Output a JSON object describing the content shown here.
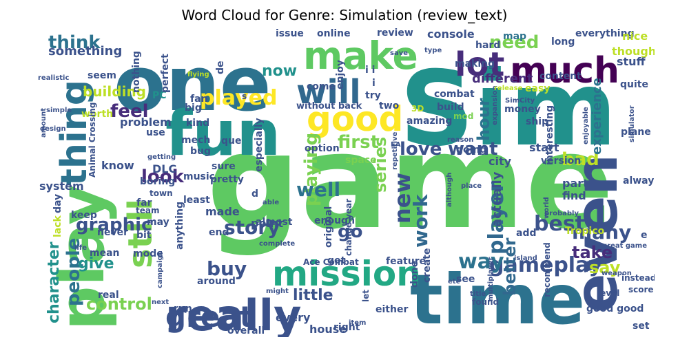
{
  "chart_data": {
    "type": "wordcloud",
    "title": "Word Cloud for Genre: Simulation (review_text)",
    "background": "#ffffff",
    "colormap": "viridis",
    "words": [
      {
        "text": "game",
        "color": "#5ec962"
      },
      {
        "text": "Sim",
        "color": "#21918c"
      },
      {
        "text": "one",
        "color": "#2c728e"
      },
      {
        "text": "time",
        "color": "#2c728e"
      },
      {
        "text": "play",
        "color": "#5ec962"
      },
      {
        "text": "fun",
        "color": "#21918c"
      },
      {
        "text": "even",
        "color": "#3b528b"
      },
      {
        "text": "really",
        "color": "#3b528b"
      },
      {
        "text": "make",
        "color": "#5ec962"
      },
      {
        "text": "much",
        "color": "#440154"
      },
      {
        "text": "good",
        "color": "#fde725"
      },
      {
        "text": "still",
        "color": "#7ad151"
      },
      {
        "text": "thing",
        "color": "#2c728e"
      },
      {
        "text": "mission",
        "color": "#22a884"
      },
      {
        "text": "will",
        "color": "#31688e"
      },
      {
        "text": "lot",
        "color": "#472d7b"
      },
      {
        "text": "great",
        "color": "#3b528b"
      },
      {
        "text": "played",
        "color": "#fde725"
      },
      {
        "text": "gameplay",
        "color": "#3b528b"
      },
      {
        "text": "story",
        "color": "#3b528b"
      },
      {
        "text": "player",
        "color": "#31688e"
      },
      {
        "text": "people",
        "color": "#2c728e"
      },
      {
        "text": "playing",
        "color": "#7ad151"
      },
      {
        "text": "graphic",
        "color": "#3b528b"
      },
      {
        "text": "character",
        "color": "#21918c"
      },
      {
        "text": "control",
        "color": "#7ad151"
      },
      {
        "text": "buy",
        "color": "#3b528b"
      },
      {
        "text": "way",
        "color": "#2c728e"
      },
      {
        "text": "love",
        "color": "#3b528b"
      },
      {
        "text": "first",
        "color": "#7ad151"
      },
      {
        "text": "want",
        "color": "#3b528b"
      },
      {
        "text": "many",
        "color": "#3b528b"
      },
      {
        "text": "best",
        "color": "#3b528b"
      },
      {
        "text": "take",
        "color": "#472d7b"
      },
      {
        "text": "look",
        "color": "#472d7b"
      },
      {
        "text": "feel",
        "color": "#472d7b"
      },
      {
        "text": "well",
        "color": "#2c728e"
      },
      {
        "text": "new",
        "color": "#3b528b"
      },
      {
        "text": "work",
        "color": "#31688e"
      },
      {
        "text": "series",
        "color": "#7ad151"
      },
      {
        "text": "go",
        "color": "#3b528b"
      },
      {
        "text": "need",
        "color": "#7ad151"
      },
      {
        "text": "think",
        "color": "#2c728e"
      },
      {
        "text": "now",
        "color": "#21918c"
      },
      {
        "text": "hour",
        "color": "#2c728e"
      },
      {
        "text": "bad",
        "color": "#bddf26"
      },
      {
        "text": "say",
        "color": "#bddf26"
      },
      {
        "text": "better",
        "color": "#31688e"
      },
      {
        "text": "give",
        "color": "#21918c"
      },
      {
        "text": "little",
        "color": "#3b528b"
      },
      {
        "text": "experience",
        "color": "#2c728e"
      },
      {
        "text": "building",
        "color": "#bddf26"
      },
      {
        "text": "something",
        "color": "#3b528b"
      },
      {
        "text": "different",
        "color": "#472d7b"
      },
      {
        "text": "everything",
        "color": "#3b528b"
      },
      {
        "text": "stuff",
        "color": "#3b528b"
      },
      {
        "text": "though",
        "color": "#bddf26"
      },
      {
        "text": "nice",
        "color": "#bddf26"
      },
      {
        "text": "long",
        "color": "#3b528b"
      },
      {
        "text": "hard",
        "color": "#3b528b"
      },
      {
        "text": "map",
        "color": "#2c728e"
      },
      {
        "text": "console",
        "color": "#3b528b"
      },
      {
        "text": "review",
        "color": "#3b528b"
      },
      {
        "text": "online",
        "color": "#3b528b"
      },
      {
        "text": "issue",
        "color": "#3b528b"
      },
      {
        "text": "making",
        "color": "#3b528b"
      },
      {
        "text": "content",
        "color": "#3b528b"
      },
      {
        "text": "quite",
        "color": "#3b528b"
      },
      {
        "text": "easy",
        "color": "#bddf26"
      },
      {
        "text": "combat",
        "color": "#3b528b"
      },
      {
        "text": "build",
        "color": "#3b528b"
      },
      {
        "text": "mod",
        "color": "#7ad151"
      },
      {
        "text": "SimCity",
        "color": "#3b528b"
      },
      {
        "text": "interesting",
        "color": "#3b528b"
      },
      {
        "text": "money",
        "color": "#3b528b"
      },
      {
        "text": "ship",
        "color": "#3b528b"
      },
      {
        "text": "amazing",
        "color": "#3b528b"
      },
      {
        "text": "3D",
        "color": "#bddf26"
      },
      {
        "text": "two",
        "color": "#3b528b"
      },
      {
        "text": "try",
        "color": "#3b528b"
      },
      {
        "text": "enjoy",
        "color": "#3b528b"
      },
      {
        "text": "come",
        "color": "#3b528b"
      },
      {
        "text": "without back",
        "color": "#3b528b"
      },
      {
        "text": "start",
        "color": "#3b528b"
      },
      {
        "text": "version",
        "color": "#3b528b"
      },
      {
        "text": "plane",
        "color": "#3b528b"
      },
      {
        "text": "city",
        "color": "#3b528b"
      },
      {
        "text": "going",
        "color": "#3b528b"
      },
      {
        "text": "option",
        "color": "#3b528b"
      },
      {
        "text": "space",
        "color": "#7ad151"
      },
      {
        "text": "always",
        "color": "#3b528b"
      },
      {
        "text": "part",
        "color": "#3b528b"
      },
      {
        "text": "find",
        "color": "#3b528b"
      },
      {
        "text": "actually",
        "color": "#3b528b"
      },
      {
        "text": "point",
        "color": "#3b528b"
      },
      {
        "text": "enough",
        "color": "#3b528b"
      },
      {
        "text": "made",
        "color": "#3b528b"
      },
      {
        "text": "pretty",
        "color": "#3b528b"
      },
      {
        "text": "sure",
        "color": "#3b528b"
      },
      {
        "text": "almost",
        "color": "#3b528b"
      },
      {
        "text": "end",
        "color": "#3b528b"
      },
      {
        "text": "system",
        "color": "#3b528b"
      },
      {
        "text": "know",
        "color": "#3b528b"
      },
      {
        "text": "problem",
        "color": "#3b528b"
      },
      {
        "text": "use",
        "color": "#3b528b"
      },
      {
        "text": "DLC",
        "color": "#3b528b"
      },
      {
        "text": "music",
        "color": "#3b528b"
      },
      {
        "text": "boring",
        "color": "#3b528b"
      },
      {
        "text": "least",
        "color": "#3b528b"
      },
      {
        "text": "bug",
        "color": "#3b528b"
      },
      {
        "text": "mech",
        "color": "#3b528b"
      },
      {
        "text": "kind",
        "color": "#3b528b"
      },
      {
        "text": "PC",
        "color": "#21918c"
      },
      {
        "text": "worth",
        "color": "#bddf26"
      },
      {
        "text": "seem",
        "color": "#3b528b"
      },
      {
        "text": "big",
        "color": "#3b528b"
      },
      {
        "text": "fan",
        "color": "#3b528b"
      },
      {
        "text": "perfect",
        "color": "#3b528b"
      },
      {
        "text": "nothing",
        "color": "#3b528b"
      },
      {
        "text": "de",
        "color": "#3b528b"
      },
      {
        "text": "que",
        "color": "#3b528b"
      },
      {
        "text": "especially",
        "color": "#3b528b"
      },
      {
        "text": "Animal Crossing",
        "color": "#3b528b"
      },
      {
        "text": "town",
        "color": "#3b528b"
      },
      {
        "text": "keep",
        "color": "#3b528b"
      },
      {
        "text": "day",
        "color": "#3b528b"
      },
      {
        "text": "mean",
        "color": "#3b528b"
      },
      {
        "text": "mode",
        "color": "#3b528b"
      },
      {
        "text": "never",
        "color": "#3b528b"
      },
      {
        "text": "bit",
        "color": "#3b528b"
      },
      {
        "text": "may",
        "color": "#3b528b"
      },
      {
        "text": "anything",
        "color": "#3b528b"
      },
      {
        "text": "around",
        "color": "#3b528b"
      },
      {
        "text": "run",
        "color": "#3b528b"
      },
      {
        "text": "real",
        "color": "#3b528b"
      },
      {
        "text": "overall",
        "color": "#3b528b"
      },
      {
        "text": "another",
        "color": "#3b528b"
      },
      {
        "text": "every",
        "color": "#3b528b"
      },
      {
        "text": "house",
        "color": "#3b528b"
      },
      {
        "text": "right",
        "color": "#3b528b"
      },
      {
        "text": "either",
        "color": "#3b528b"
      },
      {
        "text": "feature",
        "color": "#3b528b"
      },
      {
        "text": "got",
        "color": "#3b528b"
      },
      {
        "text": "Ace Combat",
        "color": "#3b528b"
      },
      {
        "text": "change year",
        "color": "#3b528b"
      },
      {
        "text": "original",
        "color": "#3b528b"
      },
      {
        "text": "add",
        "color": "#3b528b"
      },
      {
        "text": "Tropico",
        "color": "#bddf26"
      },
      {
        "text": "recommend",
        "color": "#3b528b"
      },
      {
        "text": "done",
        "color": "#3b528b"
      },
      {
        "text": "create",
        "color": "#3b528b"
      },
      {
        "text": "see",
        "color": "#3b528b"
      },
      {
        "text": "good good",
        "color": "#3b528b"
      },
      {
        "text": "set",
        "color": "#3b528b"
      },
      {
        "text": "score",
        "color": "#3b528b"
      },
      {
        "text": "instead",
        "color": "#3b528b"
      },
      {
        "text": "level",
        "color": "#3b528b"
      },
      {
        "text": "multiplayer",
        "color": "#3b528b"
      },
      {
        "text": "island",
        "color": "#3b528b"
      },
      {
        "text": "weapon",
        "color": "#3b528b"
      },
      {
        "text": "great game",
        "color": "#3b528b"
      },
      {
        "text": "found",
        "color": "#3b528b"
      },
      {
        "text": "title",
        "color": "#3b528b"
      },
      {
        "text": "etc",
        "color": "#3b528b"
      },
      {
        "text": "let",
        "color": "#3b528b"
      },
      {
        "text": "item",
        "color": "#3b528b"
      },
      {
        "text": "next",
        "color": "#3b528b"
      },
      {
        "text": "campaign",
        "color": "#3b528b"
      },
      {
        "text": "lack",
        "color": "#bddf26"
      },
      {
        "text": "far",
        "color": "#3b528b"
      },
      {
        "text": "team",
        "color": "#3b528b"
      },
      {
        "text": "able",
        "color": "#3b528b"
      },
      {
        "text": "life",
        "color": "#3b528b"
      },
      {
        "text": "complete",
        "color": "#3b528b"
      },
      {
        "text": "might",
        "color": "#3b528b"
      },
      {
        "text": "probably",
        "color": "#3b528b"
      },
      {
        "text": "world",
        "color": "#3b528b"
      },
      {
        "text": "although",
        "color": "#3b528b"
      },
      {
        "text": "place",
        "color": "#3b528b"
      },
      {
        "text": "repetitive",
        "color": "#3b528b"
      },
      {
        "text": "EA",
        "color": "#3b528b"
      },
      {
        "text": "expansion",
        "color": "#3b528b"
      },
      {
        "text": "simulator",
        "color": "#3b528b"
      },
      {
        "text": "enjoyable",
        "color": "#3b528b"
      },
      {
        "text": "reason",
        "color": "#3b528b"
      },
      {
        "text": "getting",
        "color": "#3b528b"
      },
      {
        "text": "design",
        "color": "#3b528b"
      },
      {
        "text": "amount",
        "color": "#3b528b"
      },
      {
        "text": "simple",
        "color": "#3b528b"
      },
      {
        "text": "realistic",
        "color": "#3b528b"
      },
      {
        "text": "flying",
        "color": "#bddf26"
      },
      {
        "text": "release",
        "color": "#bddf26"
      },
      {
        "text": "type",
        "color": "#3b528b"
      },
      {
        "text": "save",
        "color": "#3b528b"
      },
      {
        "text": "s",
        "color": "#3b528b"
      },
      {
        "text": "i i",
        "color": "#3b528b"
      },
      {
        "text": "i",
        "color": "#3b528b"
      },
      {
        "text": "e",
        "color": "#3b528b"
      },
      {
        "text": "d",
        "color": "#3b528b"
      }
    ]
  }
}
